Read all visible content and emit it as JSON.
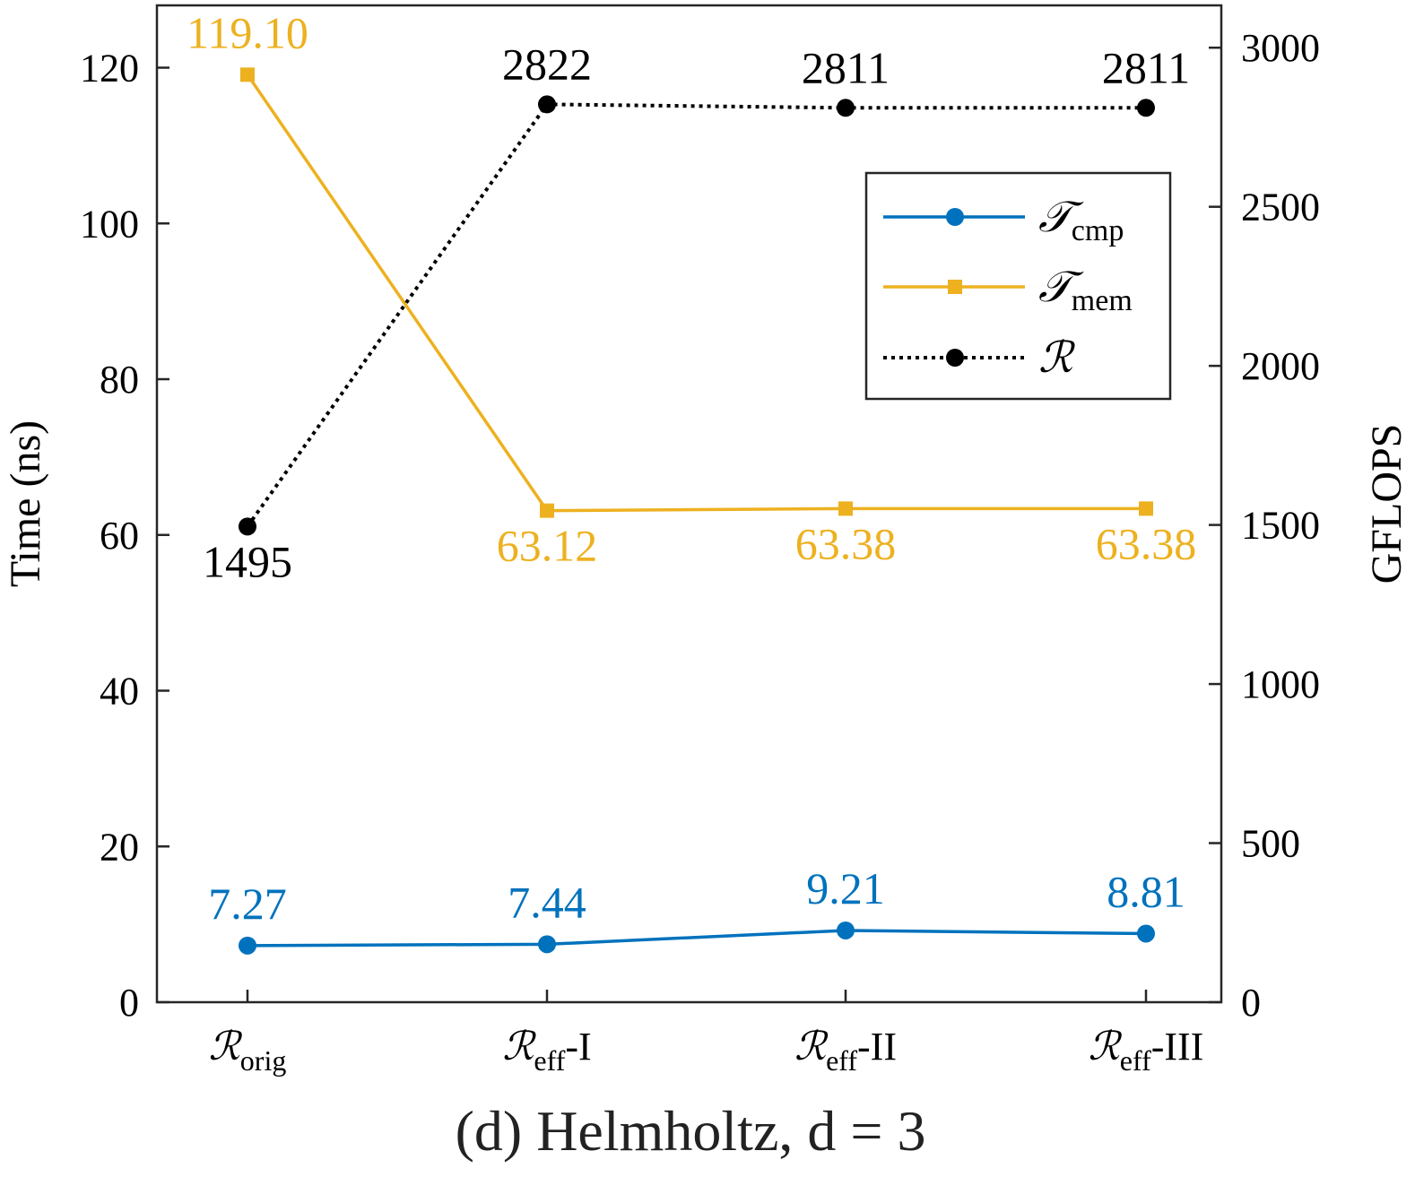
{
  "caption": "(d) Helmholtz, d = 3",
  "chart_data": {
    "type": "line",
    "categories": [
      {
        "main": "ℛ",
        "sub": "orig",
        "suffix": ""
      },
      {
        "main": "ℛ",
        "sub": "eff",
        "suffix": "-I"
      },
      {
        "main": "ℛ",
        "sub": "eff",
        "suffix": "-II"
      },
      {
        "main": "ℛ",
        "sub": "eff",
        "suffix": "-III"
      }
    ],
    "ylabel_left": "Time (ns)",
    "ylabel_right": "GFLOPS",
    "ylim_left": [
      0,
      128
    ],
    "ylim_right": [
      0,
      3133
    ],
    "yticks_left": [
      0,
      20,
      40,
      60,
      80,
      100,
      120
    ],
    "yticks_right": [
      0,
      500,
      1000,
      1500,
      2000,
      2500,
      3000
    ],
    "series": [
      {
        "name": "T_cmp",
        "legend_main": "𝒯",
        "legend_sub": "cmp",
        "axis": "left",
        "color": "#0072BD",
        "marker": "circle",
        "style": "solid",
        "values": [
          7.27,
          7.44,
          9.21,
          8.81
        ],
        "labels": [
          "7.27",
          "7.44",
          "9.21",
          "8.81"
        ]
      },
      {
        "name": "T_mem",
        "legend_main": "𝒯",
        "legend_sub": "mem",
        "axis": "left",
        "color": "#EDB120",
        "marker": "square",
        "style": "solid",
        "values": [
          119.1,
          63.12,
          63.38,
          63.38
        ],
        "labels": [
          "119.10",
          "63.12",
          "63.38",
          "63.38"
        ]
      },
      {
        "name": "R",
        "legend_main": "ℛ",
        "legend_sub": "",
        "axis": "right",
        "color": "#000000",
        "marker": "circle",
        "style": "dotted",
        "values": [
          1495,
          2822,
          2811,
          2811
        ],
        "labels": [
          "1495",
          "2822",
          "2811",
          "2811"
        ]
      }
    ],
    "legend_position": "top-right"
  }
}
